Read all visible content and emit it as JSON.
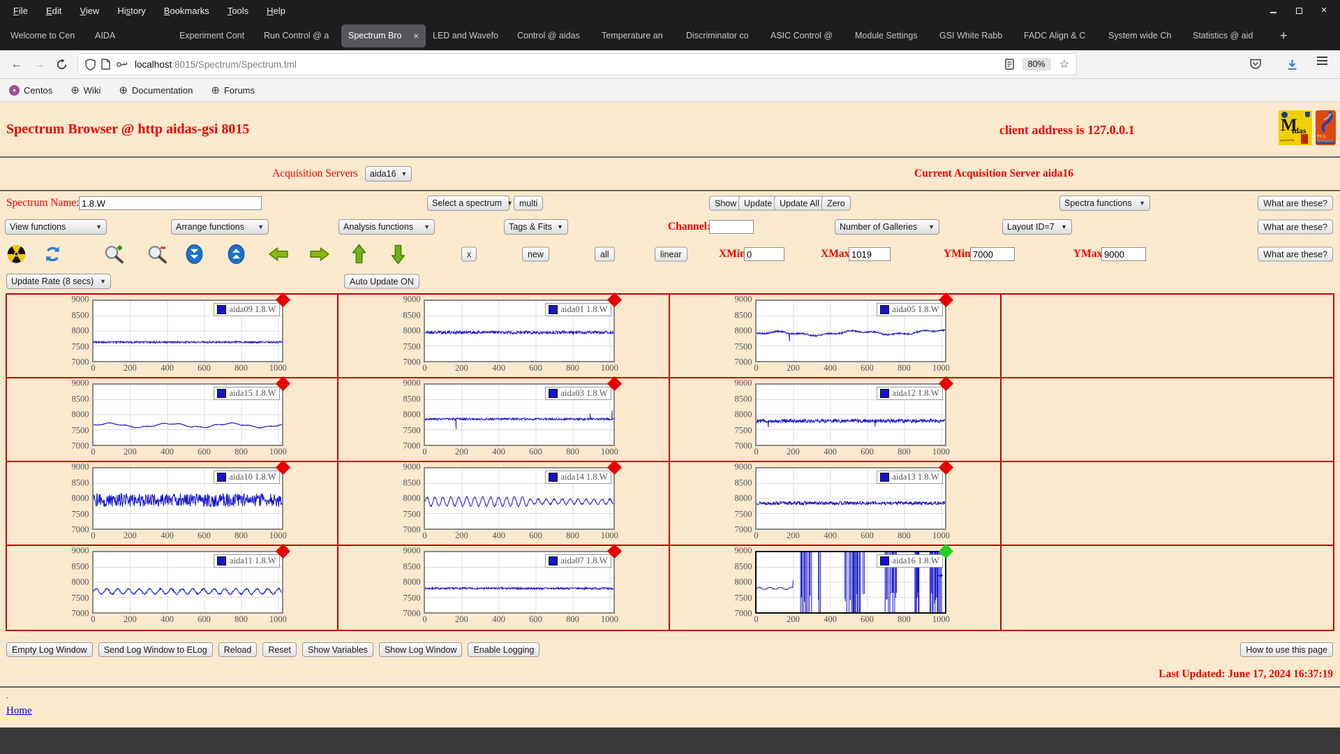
{
  "browser": {
    "menu": [
      {
        "label": "File",
        "mnemonic": 0
      },
      {
        "label": "Edit",
        "mnemonic": 0
      },
      {
        "label": "View",
        "mnemonic": 0
      },
      {
        "label": "History",
        "mnemonic": 2
      },
      {
        "label": "Bookmarks",
        "mnemonic": 0
      },
      {
        "label": "Tools",
        "mnemonic": 0
      },
      {
        "label": "Help",
        "mnemonic": 0
      }
    ],
    "tabs": [
      {
        "label": "Welcome to Cen"
      },
      {
        "label": "AIDA"
      },
      {
        "label": "Experiment Cont"
      },
      {
        "label": "Run Control @ a"
      },
      {
        "label": "Spectrum Bro",
        "active": true,
        "close": "×"
      },
      {
        "label": "LED and Wavefo"
      },
      {
        "label": "Control @ aidas"
      },
      {
        "label": "Temperature an"
      },
      {
        "label": "Discriminator co"
      },
      {
        "label": "ASIC Control @"
      },
      {
        "label": "Module Settings"
      },
      {
        "label": "GSI White Rabb"
      },
      {
        "label": "FADC Align & C"
      },
      {
        "label": "System wide Ch"
      },
      {
        "label": "Statistics @ aid"
      }
    ],
    "new_tab": "+",
    "url": {
      "host": "localhost",
      "rest": ":8015/Spectrum/Spectrum.tml"
    },
    "zoom_badge": "80%",
    "star": "☆",
    "back": "←",
    "forward": "→",
    "bookmarks": [
      {
        "label": "Centos",
        "icon": "centos-icon"
      },
      {
        "label": "Wiki",
        "icon": "globe-icon"
      },
      {
        "label": "Documentation",
        "icon": "globe-icon"
      },
      {
        "label": "Forums",
        "icon": "globe-icon"
      }
    ]
  },
  "page": {
    "title": "Spectrum Browser @ http aidas-gsi 8015",
    "client_address": "client address is 127.0.0.1",
    "acquisition": {
      "label": "Acquisition Servers",
      "selected": "aida16",
      "current": "Current Acquisition Server aida16"
    },
    "spectrum": {
      "label": "Spectrum Name:",
      "value": "1.8.W",
      "select_spectrum": "Select a spectrum",
      "multi": "multi",
      "show": "Show",
      "update": "Update",
      "update_all": "Update All",
      "zero": "Zero",
      "spectra_functions": "Spectra functions",
      "what": "What are these?"
    },
    "functions_row": {
      "view": "View functions",
      "arrange": "Arrange functions",
      "analysis": "Analysis functions",
      "tags": "Tags & Fits",
      "channel_label": "Channel:",
      "channel_value": "",
      "galleries": "Number of Galleries",
      "layout": "Layout ID=7",
      "what": "What are these?"
    },
    "toolbar": {
      "icons": [
        "radiation-icon",
        "refresh-icon",
        "zoom-in-icon",
        "zoom-out-icon",
        "compress-icon",
        "expand-icon",
        "arrow-left-icon",
        "arrow-right-icon",
        "arrow-up-icon",
        "arrow-down-icon"
      ],
      "x": "x",
      "new": "new",
      "all": "all",
      "linear": "linear",
      "xmin_label": "XMin",
      "xmin": "0",
      "xmax_label": "XMax",
      "xmax": "1019",
      "ymin_label": "YMin",
      "ymin": "7000",
      "ymax_label": "YMax",
      "ymax": "9000",
      "what": "What are these?"
    },
    "update_rate": "Update Rate (8 secs)",
    "auto_update": "Auto Update ON",
    "footer": {
      "buttons": [
        "Empty Log Window",
        "Send Log Window to ELog",
        "Reload",
        "Reset",
        "Show Variables",
        "Show Log Window",
        "Enable Logging"
      ],
      "help_button": "How to use this page",
      "last_updated": "Last Updated: June 17, 2024 16:37:19",
      "stray_dot": ".",
      "home": "Home"
    },
    "colors": {
      "accent_red": "#ef0000",
      "grid_border": "#c40000",
      "page_bg": "#fbe9ce"
    }
  },
  "chart_data": {
    "type": "line",
    "xlim": [
      0,
      1019
    ],
    "ylim": [
      7000,
      9000
    ],
    "x_ticks": [
      0,
      200,
      400,
      600,
      800,
      1000
    ],
    "y_ticks": [
      9000,
      8500,
      8000,
      7500,
      7000
    ],
    "line_color": "#1414cc",
    "grid_color": "#dcdcdc",
    "marker_red": "#e80000",
    "marker_green": "#1bd41b",
    "layout": {
      "rows": 4,
      "cols": 4,
      "empty_last_column": true
    },
    "panels": [
      {
        "row": 0,
        "col": 0,
        "name": "aida09 1.8.W",
        "marker": "red",
        "selected": false,
        "gen": {
          "type": "noise",
          "base": 7625,
          "amp": 30,
          "seed": 9
        }
      },
      {
        "row": 0,
        "col": 1,
        "name": "aida01 1.8.W",
        "marker": "red",
        "selected": false,
        "gen": {
          "type": "noise",
          "base": 7950,
          "amp": 52,
          "seed": 21
        }
      },
      {
        "row": 0,
        "col": 2,
        "name": "aida05 1.8.W",
        "marker": "red",
        "selected": false,
        "gen": {
          "type": "wander",
          "base": 7930,
          "waves": [
            {
              "amp": 55,
              "period": 430
            },
            {
              "amp": 26,
              "period": 130
            }
          ],
          "noise": 26,
          "trend": 0.06,
          "spikes": [
            {
              "x": 178,
              "y": 7655
            }
          ],
          "seed": 5
        }
      },
      {
        "row": 1,
        "col": 0,
        "name": "aida15 1.8.W",
        "marker": "red",
        "selected": false,
        "gen": {
          "type": "wander",
          "base": 7645,
          "waves": [
            {
              "amp": 62,
              "period": 330
            },
            {
              "amp": 20,
              "period": 95
            }
          ],
          "noise": 11,
          "seed": 15
        }
      },
      {
        "row": 1,
        "col": 1,
        "name": "aida03 1.8.W",
        "marker": "red",
        "selected": false,
        "gen": {
          "type": "noise",
          "base": 7855,
          "amp": 34,
          "spikes": [
            {
              "x": 168,
              "y": 7530
            },
            {
              "x": 893,
              "y": 8040
            },
            {
              "x": 1012,
              "y": 8130
            }
          ],
          "seed": 3
        }
      },
      {
        "row": 1,
        "col": 2,
        "name": "aida12 1.8.W",
        "marker": "red",
        "selected": false,
        "gen": {
          "type": "noise",
          "base": 7795,
          "amp": 62,
          "spikes": [
            {
              "x": 64,
              "y": 7585
            },
            {
              "x": 641,
              "y": 7605
            }
          ],
          "seed": 12
        }
      },
      {
        "row": 2,
        "col": 0,
        "name": "aida10 1.8.W",
        "marker": "red",
        "selected": false,
        "gen": {
          "type": "noise",
          "base": 7945,
          "amp": 225,
          "seed": 10
        }
      },
      {
        "row": 2,
        "col": 1,
        "name": "aida14 1.8.W",
        "marker": "red",
        "selected": false,
        "gen": {
          "type": "sine",
          "base": 7895,
          "amp": 150,
          "amp2": 85,
          "split": 560,
          "period": 43,
          "noise": 22,
          "seed": 14
        }
      },
      {
        "row": 2,
        "col": 2,
        "name": "aida13 1.8.W",
        "marker": "red",
        "selected": false,
        "gen": {
          "type": "noise",
          "base": 7845,
          "amp": 55,
          "seed": 13
        }
      },
      {
        "row": 3,
        "col": 0,
        "name": "aida11 1.8.W",
        "marker": "red",
        "selected": false,
        "gen": {
          "type": "sine",
          "base": 7695,
          "amp": 88,
          "period": 58,
          "noise": 26,
          "seed": 11
        }
      },
      {
        "row": 3,
        "col": 1,
        "name": "aida07 1.8.W",
        "marker": "red",
        "selected": false,
        "gen": {
          "type": "noise",
          "base": 7795,
          "amp": 33,
          "seed": 7
        }
      },
      {
        "row": 3,
        "col": 2,
        "name": "aida16 1.8.W",
        "marker": "green",
        "selected": true,
        "gen": {
          "type": "vspikes",
          "flat": {
            "until": 196,
            "base": 7795,
            "wave_amp": 32,
            "wave_period": 58,
            "noise": 12,
            "end_spike": 8055
          },
          "bands": [
            [
              238,
              302
            ],
            [
              335,
              346
            ],
            [
              478,
              492
            ],
            [
              500,
              515
            ],
            [
              520,
              562
            ],
            [
              576,
              584
            ],
            [
              695,
              762
            ],
            [
              856,
              880
            ],
            [
              938,
              1006
            ]
          ],
          "tail": {
            "x1": 984,
            "x2": 1008,
            "y": 8230
          },
          "seed": 16
        }
      }
    ]
  }
}
